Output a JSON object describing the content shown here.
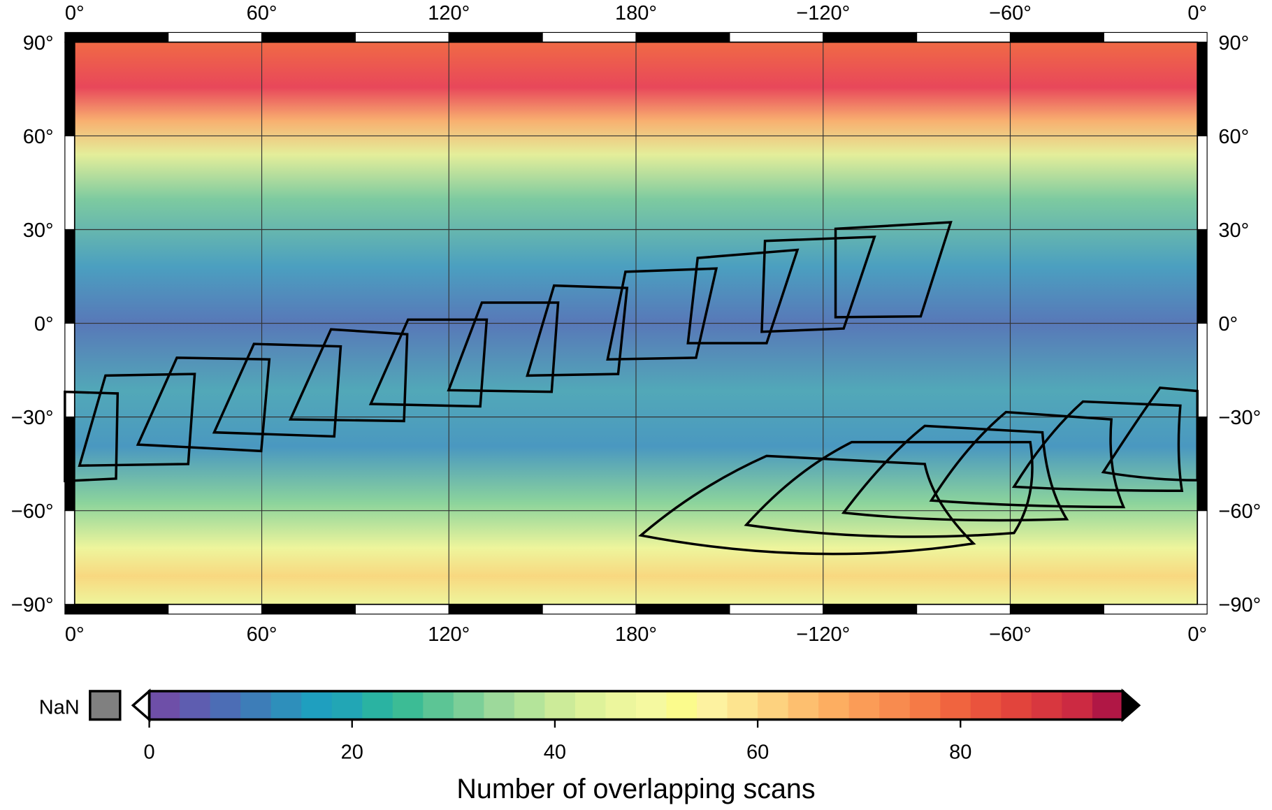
{
  "map": {
    "lon_labels": [
      "0°",
      "60°",
      "120°",
      "180°",
      "−120°",
      "−60°",
      "0°"
    ],
    "lat_labels": [
      "90°",
      "60°",
      "30°",
      "0°",
      "−30°",
      "−60°",
      "−90°"
    ]
  },
  "colorbar": {
    "label": "Number of overlapping scans",
    "nan_label": "NaN",
    "nan_color": "#808080",
    "range": [
      0,
      96
    ],
    "ticks": [
      0,
      20,
      40,
      60,
      80
    ],
    "colors": [
      "#6e4fa8",
      "#5e5db0",
      "#4c6db5",
      "#3d7db8",
      "#2e8fbb",
      "#1f9fbf",
      "#22a6b5",
      "#2ab3a2",
      "#3cbc95",
      "#5cc595",
      "#7ccf98",
      "#9dd99b",
      "#b4e49a",
      "#cceb99",
      "#def29a",
      "#ecf69d",
      "#f5f9a0",
      "#fbfb8c",
      "#fdf2a0",
      "#fde48f",
      "#fdd27f",
      "#fdbf6f",
      "#fdae61",
      "#fb9c57",
      "#f88b4f",
      "#f57a46",
      "#f0643f",
      "#ea533d",
      "#e2443c",
      "#d8373f",
      "#cc2a42",
      "#b01745"
    ]
  }
}
